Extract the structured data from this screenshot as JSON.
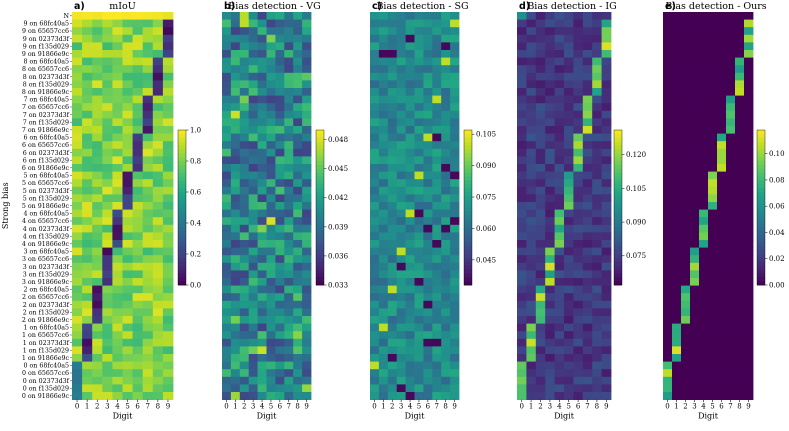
{
  "chart_data": [
    {
      "panel": "a)",
      "title": "mIoU",
      "type": "heatmap",
      "xlabel": "Digit",
      "ylabel": "Strong bias",
      "categories": [
        "0",
        "1",
        "2",
        "3",
        "4",
        "5",
        "6",
        "7",
        "8",
        "9"
      ],
      "first_row_label": "N",
      "colorbar": {
        "min": 0.0,
        "max": 1.0,
        "ticks": [
          "0.0",
          "0.2",
          "0.4",
          "0.6",
          "0.8",
          "1.0"
        ]
      },
      "note": "Row 'N' is ~1.0 everywhere; rows 'k on ...' are near 0 at digit k and ~0.8 elsewhere; rows '0 on ...' are ~0.4-0.5 at digit 0."
    },
    {
      "panel": "b)",
      "title": "Bias detection - VG",
      "type": "heatmap",
      "xlabel": "Digit",
      "categories": [
        "0",
        "1",
        "2",
        "3",
        "4",
        "5",
        "6",
        "7",
        "8",
        "9"
      ],
      "colorbar": {
        "min": 0.033,
        "max": 0.049,
        "ticks": [
          "0.033",
          "0.036",
          "0.039",
          "0.042",
          "0.045",
          "0.048"
        ]
      }
    },
    {
      "panel": "c)",
      "title": "Bias detection - SG",
      "type": "heatmap",
      "xlabel": "Digit",
      "categories": [
        "0",
        "1",
        "2",
        "3",
        "4",
        "5",
        "6",
        "7",
        "8",
        "9"
      ],
      "colorbar": {
        "min": 0.033,
        "max": 0.107,
        "ticks": [
          "0.045",
          "0.060",
          "0.075",
          "0.090",
          "0.105"
        ]
      }
    },
    {
      "panel": "d)",
      "title": "Bias detection - IG",
      "type": "heatmap",
      "xlabel": "Digit",
      "categories": [
        "0",
        "1",
        "2",
        "3",
        "4",
        "5",
        "6",
        "7",
        "8",
        "9"
      ],
      "colorbar": {
        "min": 0.062,
        "max": 0.131,
        "ticks": [
          "0.075",
          "0.090",
          "0.105",
          "0.120"
        ]
      }
    },
    {
      "panel": "e)",
      "title": "Bias detection - Ours",
      "type": "heatmap",
      "xlabel": "Digit",
      "categories": [
        "0",
        "1",
        "2",
        "3",
        "4",
        "5",
        "6",
        "7",
        "8",
        "9"
      ],
      "colorbar": {
        "min": 0.0,
        "max": 0.118,
        "ticks": [
          "0.00",
          "0.02",
          "0.04",
          "0.06",
          "0.08",
          "0.10"
        ]
      }
    }
  ],
  "row_labels": [
    "N",
    "9 on 68fc40a5",
    "9 on 65657cc6",
    "9 on 02373d3f",
    "9 on f135d029",
    "9 on 91866e9c",
    "8 on 68fc40a5",
    "8 on 65657cc6",
    "8 on 02373d3f",
    "8 on f135d029",
    "8 on 91866e9c",
    "7 on 68fc40a5",
    "7 on 65657cc6",
    "7 on 02373d3f",
    "7 on f135d029",
    "7 on 91866e9c",
    "6 on 68fc40a5",
    "6 on 65657cc6",
    "6 on 02373d3f",
    "6 on f135d029",
    "6 on 91866e9c",
    "5 on 68fc40a5",
    "5 on 65657cc6",
    "5 on 02373d3f",
    "5 on f135d029",
    "5 on 91866e9c",
    "4 on 68fc40a5",
    "4 on 65657cc6",
    "4 on 02373d3f",
    "4 on f135d029",
    "4 on 91866e9c",
    "3 on 68fc40a5",
    "3 on 65657cc6",
    "3 on 02373d3f",
    "3 on f135d029",
    "3 on 91866e9c",
    "2 on 68fc40a5",
    "2 on 65657cc6",
    "2 on 02373d3f",
    "2 on f135d029",
    "2 on 91866e9c",
    "1 on 68fc40a5",
    "1 on 65657cc6",
    "1 on 02373d3f",
    "1 on f135d029",
    "1 on 91866e9c",
    "0 on 68fc40a5",
    "0 on 65657cc6",
    "0 on 02373d3f",
    "0 on f135d029",
    "0 on 91866e9c"
  ],
  "colormap": "viridis"
}
